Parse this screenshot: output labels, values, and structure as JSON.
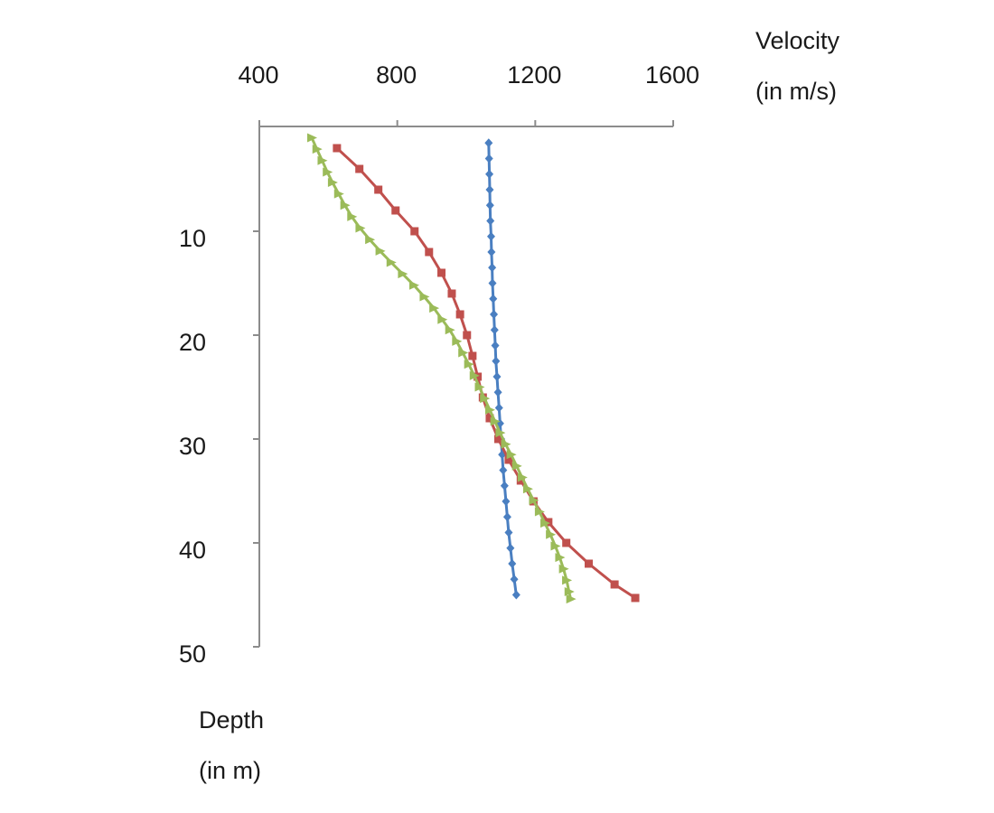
{
  "chart_data": {
    "type": "line",
    "title": "",
    "x_axis": {
      "label_line1": "Velocity",
      "label_line2": "(in m/s)",
      "position": "top",
      "range": [
        400,
        1600
      ],
      "ticks": [
        400,
        800,
        1200,
        1600
      ]
    },
    "y_axis": {
      "label_line1": "Depth",
      "label_line2": "(in m)",
      "inverted": true,
      "range": [
        0,
        50
      ],
      "ticks": [
        10,
        20,
        30,
        40,
        50
      ]
    },
    "grid": false,
    "legend": "none",
    "series": [
      {
        "name": "blue",
        "color": "#4a7fc1",
        "marker": "diamond",
        "points": [
          [
            1065,
            1.5
          ],
          [
            1066,
            3.0
          ],
          [
            1067,
            4.5
          ],
          [
            1068,
            6.0
          ],
          [
            1069,
            7.5
          ],
          [
            1070,
            9.0
          ],
          [
            1072,
            10.5
          ],
          [
            1073,
            12.0
          ],
          [
            1075,
            13.5
          ],
          [
            1076,
            15.0
          ],
          [
            1078,
            16.5
          ],
          [
            1080,
            18.0
          ],
          [
            1082,
            19.5
          ],
          [
            1084,
            21.0
          ],
          [
            1086,
            22.5
          ],
          [
            1089,
            24.0
          ],
          [
            1092,
            25.5
          ],
          [
            1095,
            27.0
          ],
          [
            1098,
            28.5
          ],
          [
            1101,
            30.0
          ],
          [
            1104,
            31.5
          ],
          [
            1107,
            33.0
          ],
          [
            1111,
            34.5
          ],
          [
            1115,
            36.0
          ],
          [
            1119,
            37.5
          ],
          [
            1123,
            39.0
          ],
          [
            1128,
            40.5
          ],
          [
            1133,
            42.0
          ],
          [
            1139,
            43.5
          ],
          [
            1145,
            45.0
          ]
        ]
      },
      {
        "name": "red",
        "color": "#c0504d",
        "marker": "square",
        "points": [
          [
            625,
            2
          ],
          [
            690,
            4
          ],
          [
            745,
            6
          ],
          [
            795,
            8
          ],
          [
            850,
            10
          ],
          [
            892,
            12
          ],
          [
            928,
            14
          ],
          [
            958,
            16
          ],
          [
            982,
            18
          ],
          [
            1002,
            20
          ],
          [
            1018,
            22
          ],
          [
            1033,
            24
          ],
          [
            1048,
            26
          ],
          [
            1068,
            28
          ],
          [
            1093,
            30
          ],
          [
            1123,
            32
          ],
          [
            1158,
            34
          ],
          [
            1195,
            36
          ],
          [
            1238,
            38
          ],
          [
            1290,
            40
          ],
          [
            1355,
            42
          ],
          [
            1430,
            44
          ],
          [
            1490,
            45.3
          ]
        ]
      },
      {
        "name": "green",
        "color": "#9bbb59",
        "marker": "triangle",
        "points": [
          [
            552,
            1.0
          ],
          [
            567,
            2.1
          ],
          [
            582,
            3.2
          ],
          [
            597,
            4.3
          ],
          [
            612,
            5.3
          ],
          [
            630,
            6.4
          ],
          [
            648,
            7.5
          ],
          [
            668,
            8.6
          ],
          [
            692,
            9.7
          ],
          [
            720,
            10.8
          ],
          [
            750,
            11.9
          ],
          [
            782,
            13.0
          ],
          [
            815,
            14.1
          ],
          [
            848,
            15.2
          ],
          [
            878,
            16.3
          ],
          [
            906,
            17.4
          ],
          [
            930,
            18.5
          ],
          [
            952,
            19.5
          ],
          [
            972,
            20.6
          ],
          [
            990,
            21.7
          ],
          [
            1007,
            22.8
          ],
          [
            1023,
            23.9
          ],
          [
            1038,
            25.0
          ],
          [
            1053,
            26.1
          ],
          [
            1068,
            27.2
          ],
          [
            1083,
            28.3
          ],
          [
            1098,
            29.4
          ],
          [
            1114,
            30.5
          ],
          [
            1130,
            31.5
          ],
          [
            1146,
            32.6
          ],
          [
            1162,
            33.7
          ],
          [
            1178,
            34.8
          ],
          [
            1195,
            35.9
          ],
          [
            1212,
            37.0
          ],
          [
            1228,
            38.1
          ],
          [
            1244,
            39.2
          ],
          [
            1258,
            40.3
          ],
          [
            1271,
            41.4
          ],
          [
            1282,
            42.5
          ],
          [
            1291,
            43.6
          ],
          [
            1298,
            44.7
          ],
          [
            1303,
            45.4
          ]
        ]
      }
    ]
  }
}
